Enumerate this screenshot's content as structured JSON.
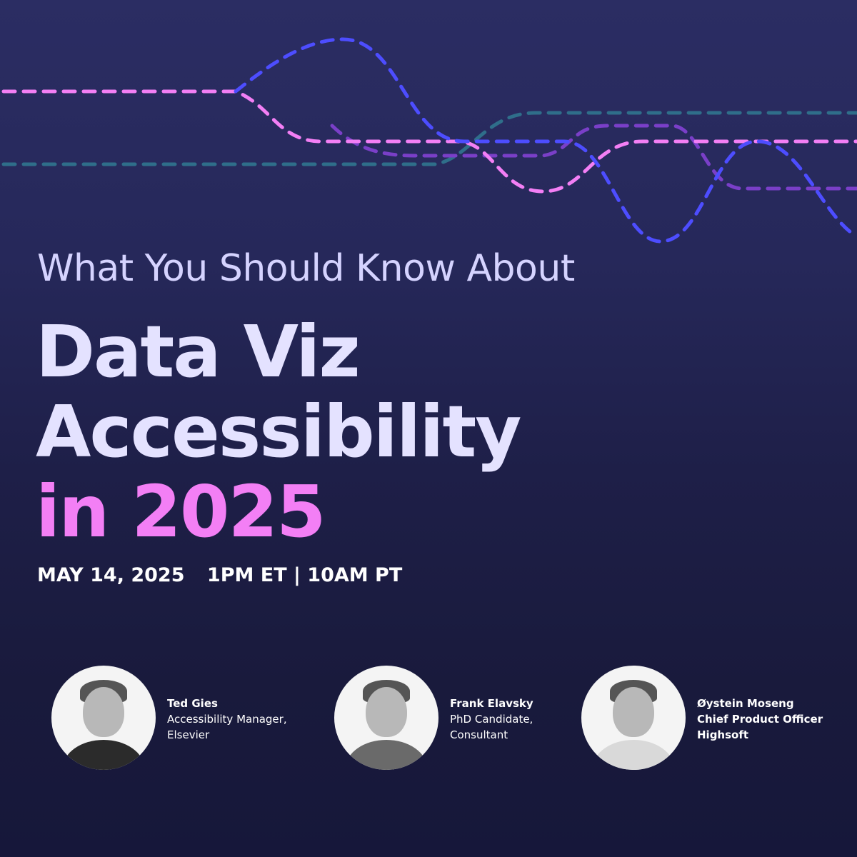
{
  "header": {
    "subtitle": "What You Should Know About",
    "title_line1": "Data Viz",
    "title_line2": "Accessibility",
    "title_line3": "in 2025"
  },
  "event": {
    "date": "MAY 14, 2025",
    "time": "1PM ET | 10AM PT"
  },
  "speakers": [
    {
      "name": "Ted Gies",
      "role_line1": "Accessibility Manager,",
      "role_line2": "Elsevier"
    },
    {
      "name": "Frank Elavsky",
      "role_line1": "PhD Candidate,",
      "role_line2": "Consultant"
    },
    {
      "name": "Øystein Moseng",
      "role_line1": "Chief Product Officer",
      "role_line2": "Highsoft"
    }
  ],
  "colors": {
    "accent_pink": "#f37ff5",
    "line_blue": "#4d4dff",
    "line_teal": "#2f6e8a",
    "line_purple": "#7a3fc8",
    "background": "#26285a"
  }
}
